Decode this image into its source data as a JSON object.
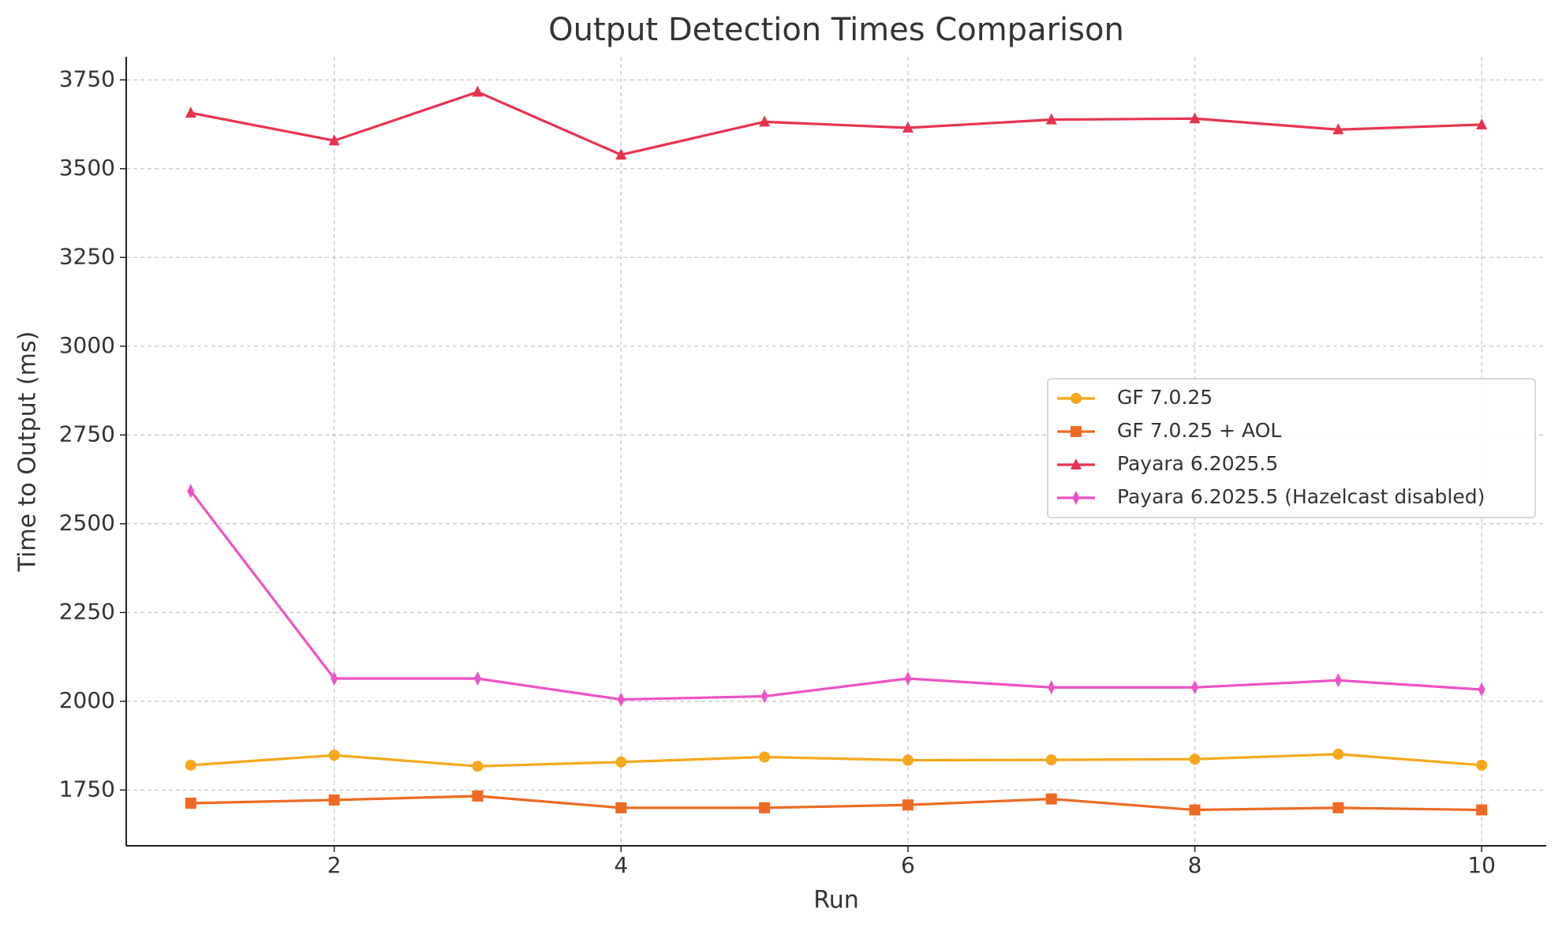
{
  "chart_data": {
    "type": "line",
    "title": "Output Detection Times Comparison",
    "xlabel": "Run",
    "ylabel": "Time to Output (ms)",
    "x": [
      1,
      2,
      3,
      4,
      5,
      6,
      7,
      8,
      9,
      10
    ],
    "xlim": [
      0.55,
      10.45
    ],
    "xticks": [
      2,
      4,
      6,
      8,
      10
    ],
    "ylim": [
      1593,
      3815
    ],
    "yticks": [
      1750,
      2000,
      2250,
      2500,
      2750,
      3000,
      3250,
      3500,
      3750
    ],
    "grid": true,
    "legend": "center right",
    "series": [
      {
        "name": "GF 7.0.25",
        "color": "#f5a81c",
        "marker": "circle",
        "values": [
          1820,
          1848,
          1817,
          1829,
          1843,
          1834,
          1835,
          1837,
          1851,
          1820
        ]
      },
      {
        "name": "GF 7.0.25 + AOL",
        "color": "#ee6a24",
        "marker": "square",
        "values": [
          1713,
          1722,
          1733,
          1700,
          1700,
          1708,
          1725,
          1694,
          1700,
          1694
        ]
      },
      {
        "name": "Payara 6.2025.5",
        "color": "#e8334f",
        "marker": "triangle",
        "values": [
          3657,
          3579,
          3716,
          3539,
          3632,
          3615,
          3638,
          3641,
          3610,
          3624
        ]
      },
      {
        "name": "Payara 6.2025.5 (Hazelcast disabled)",
        "color": "#ee52c4",
        "marker": "diamond",
        "values": [
          2592,
          2064,
          2064,
          2005,
          2014,
          2064,
          2039,
          2039,
          2059,
          2033
        ]
      }
    ]
  }
}
